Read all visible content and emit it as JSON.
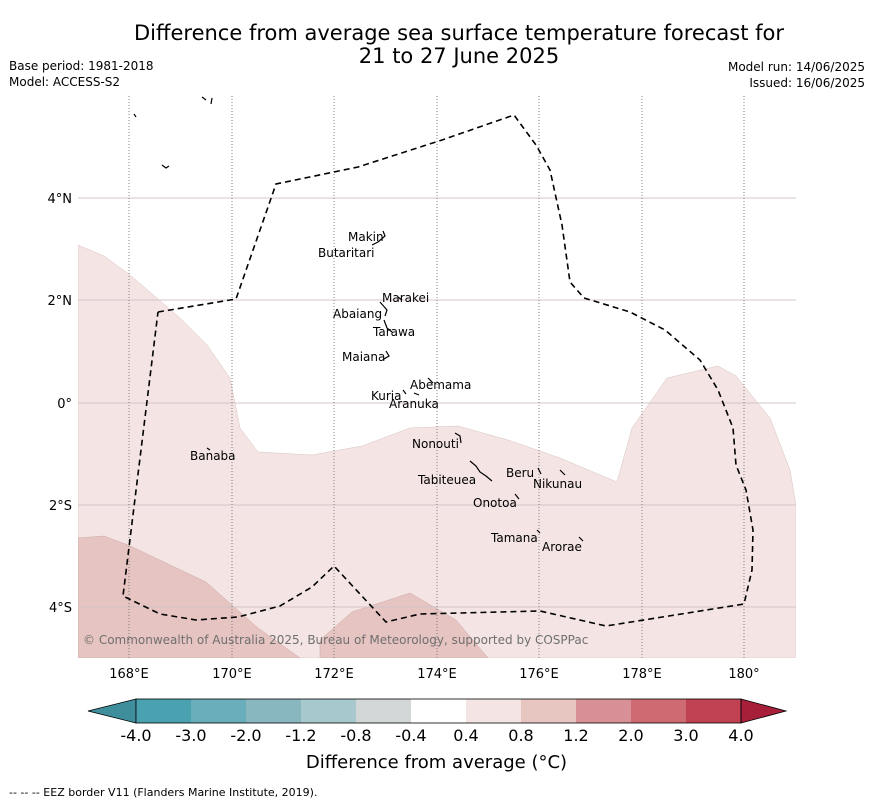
{
  "title_line1": "Difference from average sea surface temperature forecast for",
  "title_line2": "21 to 27 June 2025",
  "base_period": "Base period: 1981-2018",
  "model": "Model: ACCESS-S2",
  "model_run": "Model run: 14/06/2025",
  "issued": "Issued: 16/06/2025",
  "copyright": "© Commonwealth of Australia 2025, Bureau of Meteorology, supported by COSPPac",
  "lon_ticks": [
    "168°E",
    "170°E",
    "172°E",
    "174°E",
    "176°E",
    "178°E",
    "180°"
  ],
  "lat_ticks": [
    "4°N",
    "2°N",
    "0°",
    "2°S",
    "4°S"
  ],
  "islands": [
    {
      "name": "Makin"
    },
    {
      "name": "Butaritari"
    },
    {
      "name": "Marakei"
    },
    {
      "name": "Abaiang"
    },
    {
      "name": "Tarawa"
    },
    {
      "name": "Maiana"
    },
    {
      "name": "Abemama"
    },
    {
      "name": "Kuria"
    },
    {
      "name": "Aranuka"
    },
    {
      "name": "Nonouti"
    },
    {
      "name": "Banaba"
    },
    {
      "name": "Beru"
    },
    {
      "name": "Tabiteuea"
    },
    {
      "name": "Nikunau"
    },
    {
      "name": "Onotoa"
    },
    {
      "name": "Tamana"
    },
    {
      "name": "Arorae"
    }
  ],
  "colorbar": {
    "labels": [
      "-4.0",
      "-3.0",
      "-2.0",
      "-1.2",
      "-0.8",
      "-0.4",
      "0.4",
      "0.8",
      "1.2",
      "2.0",
      "3.0",
      "4.0"
    ],
    "colors": [
      "#3e8e9c",
      "#4aa1b0",
      "#6aaebb",
      "#89b7c0",
      "#a7c9cd",
      "#d3d6d7",
      "#ffffff",
      "#f4e5e4",
      "#e7c6c2",
      "#d98f96",
      "#cd6a72",
      "#c04252",
      "#a81f3a"
    ],
    "title": "Difference from average (°C)"
  },
  "legend_footnote": "-- -- -- EEZ border V11 (Flanders Marine Institute, 2019).",
  "map_colors": {
    "light_warm": "#f4e5e4",
    "warm": "#e6c4c1",
    "border": "#000000"
  }
}
